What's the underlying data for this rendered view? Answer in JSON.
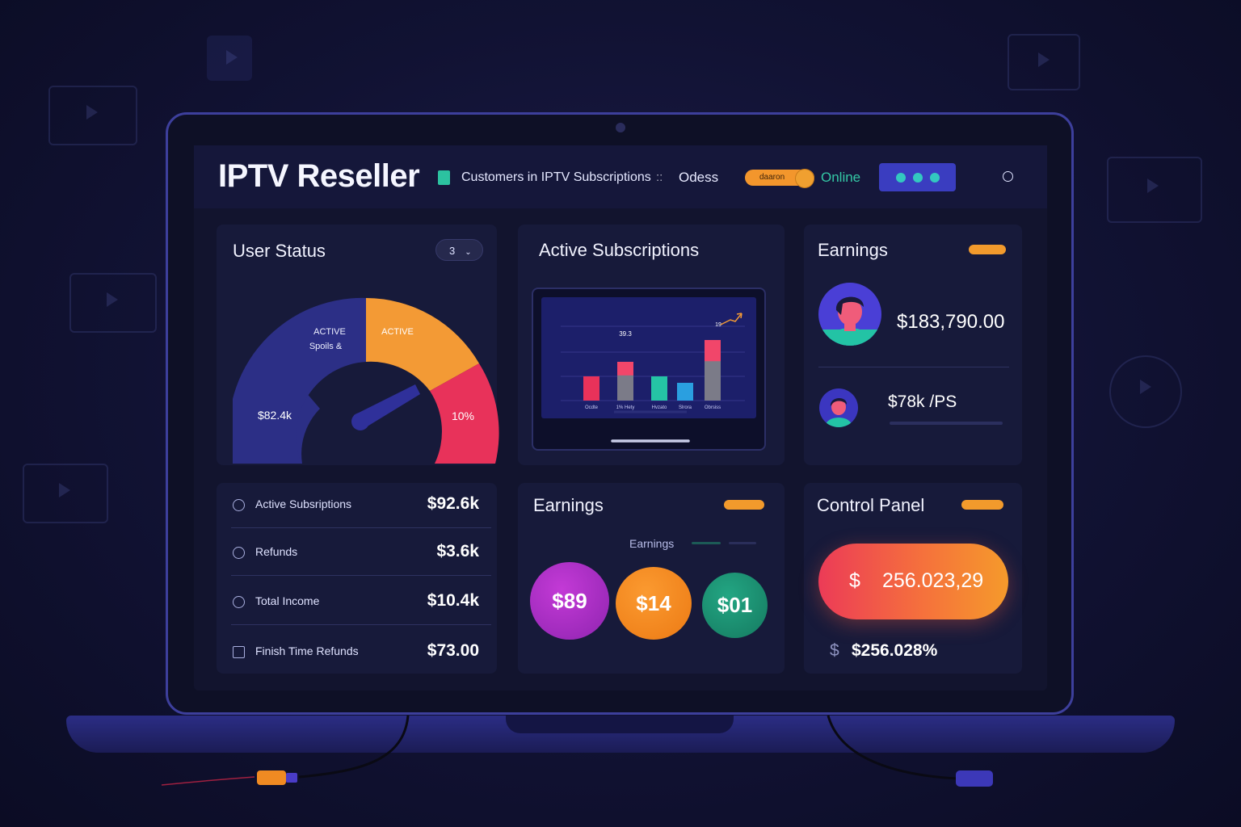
{
  "colors": {
    "accent_orange": "#f3962c",
    "accent_teal": "#2cc2a0",
    "accent_red": "#ec3b57",
    "accent_indigo": "#3a3dc0",
    "background": "#12142e"
  },
  "header": {
    "title": "IPTV Reseller",
    "customers_label": "Customers in IPTV Subscriptions",
    "separator": "::",
    "location": "Odess",
    "toggle_label": "daaron",
    "status": "Online",
    "menu_icon": "three-dots-icon",
    "profile_icon": "circle-icon"
  },
  "user_status": {
    "title": "User Status",
    "dropdown_value": "3",
    "gauge": {
      "label_left_top": "ACTIVE",
      "label_left_bottom": "Spoils &",
      "label_right": "ACTIVE",
      "value_left": "$82.4k",
      "value_right": "10%",
      "segments": [
        {
          "name": "navy",
          "color": "#2c2f86",
          "fraction": 0.5
        },
        {
          "name": "orange",
          "color": "#f39a35",
          "fraction": 0.3
        },
        {
          "name": "red",
          "color": "#e8325a",
          "fraction": 0.2
        }
      ]
    }
  },
  "active_subscriptions": {
    "title": "Active Subscriptions",
    "chart_data": {
      "type": "bar",
      "categories": [
        "Ocdte",
        "1% Hety",
        "Hvzato",
        "Slrora",
        "Obrsiss"
      ],
      "values": [
        30,
        48,
        30,
        22,
        75
      ],
      "colors": [
        "#e8325a",
        "#f1466a",
        "#25c4a5",
        "#2a9fe0",
        "#f1466a"
      ],
      "annotations": [
        "39.3",
        "19"
      ],
      "ylim": [
        0,
        100
      ],
      "grid": true
    }
  },
  "earnings_top": {
    "title": "Earnings",
    "badge": "",
    "amount_primary": "$183,790.00",
    "amount_secondary": "$78k /PS"
  },
  "summary_list": {
    "rows": [
      {
        "icon": "drop-icon",
        "label": "Active  Subsriptions",
        "value": "$92.6k"
      },
      {
        "icon": "clock-icon",
        "label": "Refunds",
        "value": "$3.6k"
      },
      {
        "icon": "shield-icon",
        "label": "Total Income",
        "value": "$10.4k"
      },
      {
        "icon": "home-icon",
        "label": "Finish Time Refunds",
        "value": "$73.00"
      }
    ]
  },
  "earnings_bottom": {
    "title": "Earnings",
    "subtitle": "Earnings",
    "badge": "",
    "bubbles": [
      {
        "value": "$89",
        "color": "#a82fc0"
      },
      {
        "value": "$14",
        "color": "#f28a1e"
      },
      {
        "value": "$01",
        "color": "#1f9a78"
      }
    ]
  },
  "control_panel": {
    "title": "Control Panel",
    "badge": "",
    "currency": "$",
    "amount": "256.023,29",
    "secondary_currency": "$",
    "secondary_amount": "$256.028%"
  }
}
